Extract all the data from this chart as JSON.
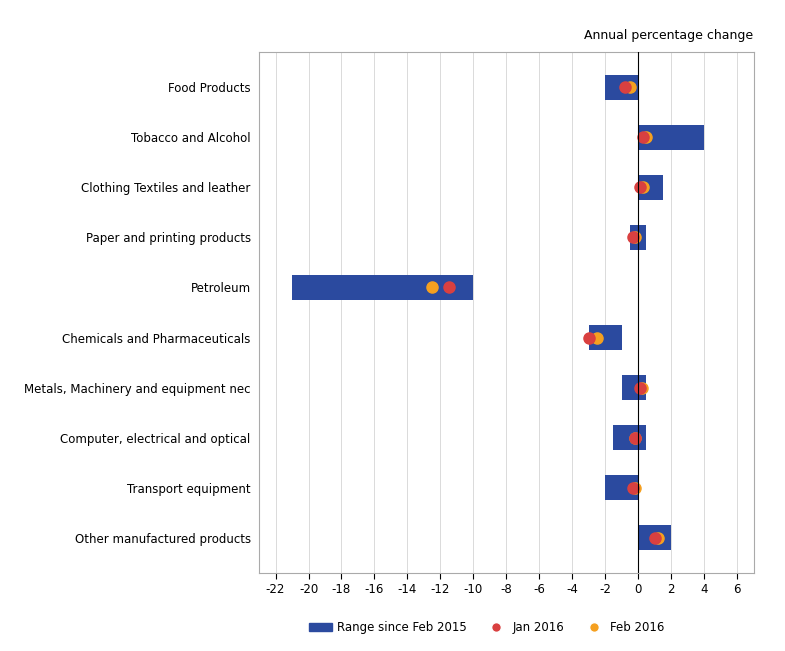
{
  "categories": [
    "Food Products",
    "Tobacco and Alcohol",
    "Clothing Textiles and leather",
    "Paper and printing products",
    "Petroleum",
    "Chemicals and Pharmaceuticals",
    "Metals, Machinery and equipment nec",
    "Computer, electrical and optical",
    "Transport equipment",
    "Other manufactured products"
  ],
  "bar_min": [
    -2.0,
    0.0,
    0.0,
    -0.5,
    -21.0,
    -3.0,
    -1.0,
    -1.5,
    -2.0,
    0.0
  ],
  "bar_max": [
    0.0,
    4.0,
    1.5,
    0.5,
    -10.0,
    -1.0,
    0.5,
    0.5,
    0.0,
    2.0
  ],
  "jan2016": [
    -0.8,
    0.3,
    0.1,
    -0.3,
    -11.5,
    -3.0,
    0.1,
    -0.2,
    -0.3,
    1.0
  ],
  "feb2016": [
    -0.5,
    0.5,
    0.3,
    -0.2,
    -12.5,
    -2.5,
    0.2,
    -0.2,
    -0.2,
    1.2
  ],
  "bar_color": "#2B4A9F",
  "jan_color": "#D94040",
  "feb_color": "#F5A020",
  "title": "Annual percentage change",
  "xlim": [
    -23,
    7
  ],
  "xticks": [
    -22,
    -20,
    -18,
    -16,
    -14,
    -12,
    -10,
    -8,
    -6,
    -4,
    -2,
    0,
    2,
    4,
    6
  ],
  "background_color": "#ffffff",
  "legend_bar_label": "Range since Feb 2015",
  "legend_jan_label": "Jan 2016",
  "legend_feb_label": "Feb 2016"
}
